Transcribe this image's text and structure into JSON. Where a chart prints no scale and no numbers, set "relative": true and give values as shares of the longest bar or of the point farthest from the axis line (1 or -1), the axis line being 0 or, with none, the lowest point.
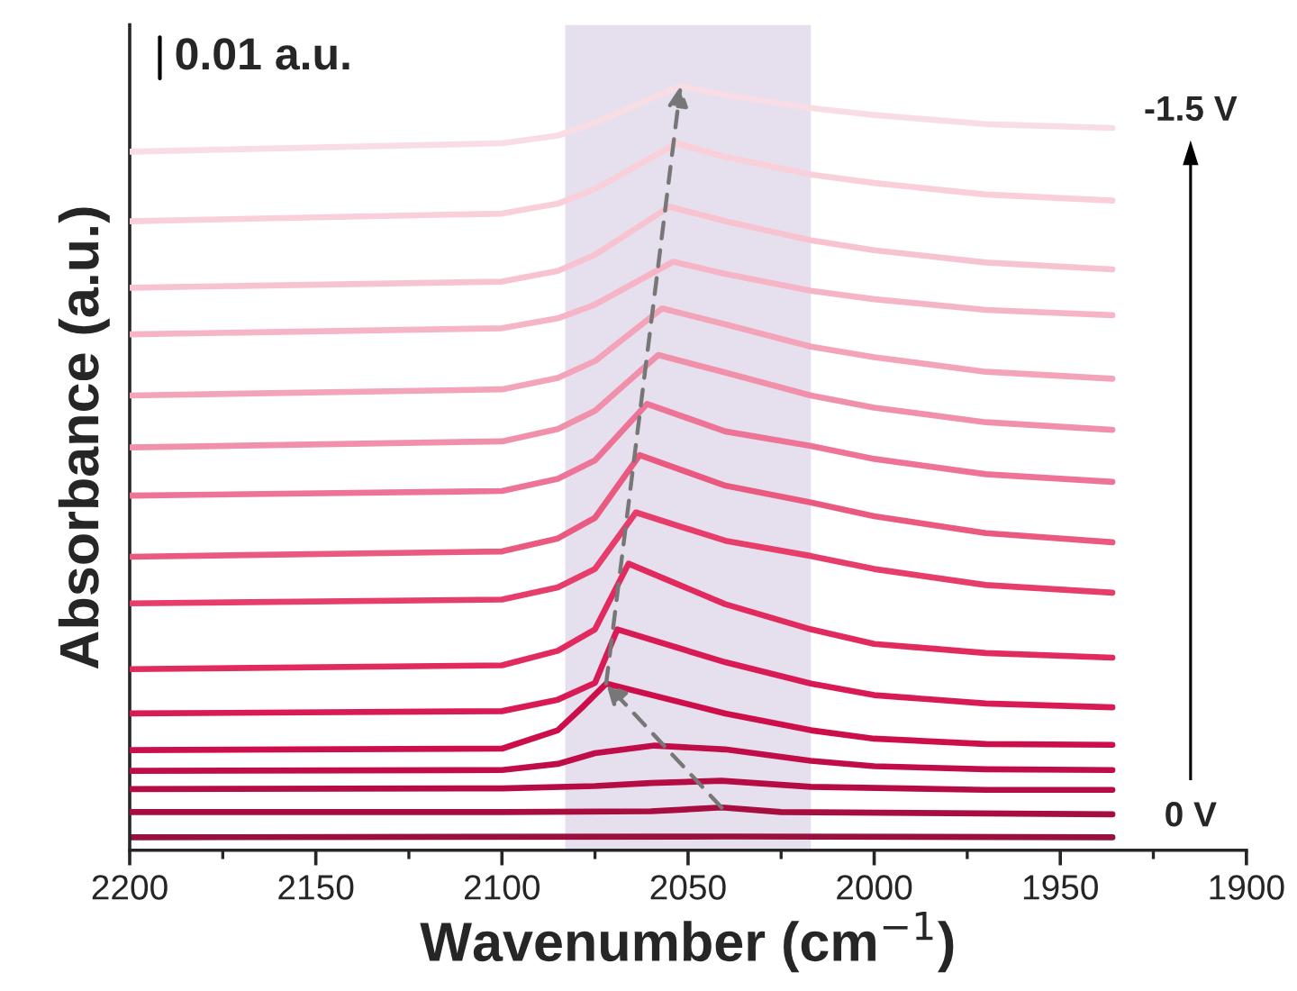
{
  "chart_data": {
    "type": "line",
    "relative": true,
    "xlabel": "Wavenumber (cm$^{−1}$)",
    "ylabel": "Absorbance (a.u.)",
    "xlim": [
      2200,
      1900
    ],
    "xticks": [
      2200,
      2150,
      2100,
      2050,
      2000,
      1950,
      1900
    ],
    "tick_labels": "x",
    "bands": [
      {
        "axis": "x",
        "from": 2083,
        "to": 2017,
        "color": "#e6e0ee"
      }
    ],
    "annotations": [
      "0.01 a.u.",
      "-1.5 V",
      "0 V"
    ],
    "series": [
      {
        "color": "#990f3d",
        "x": [
          2200,
          2040,
          1936
        ],
        "values": [
          0.017,
          0.018,
          0.017
        ]
      },
      {
        "color": "#a80d40",
        "x": [
          2200,
          2100,
          2060,
          2041,
          2025,
          1936
        ],
        "values": [
          0.05,
          0.05,
          0.051,
          0.056,
          0.05,
          0.047
        ]
      },
      {
        "color": "#b50c44",
        "x": [
          2200,
          2100,
          2075,
          2060,
          2041,
          2017,
          1970,
          1936
        ],
        "values": [
          0.08,
          0.081,
          0.084,
          0.088,
          0.091,
          0.083,
          0.079,
          0.079
        ]
      },
      {
        "color": "#c00d47",
        "x": [
          2200,
          2100,
          2085,
          2075,
          2059,
          2040,
          2017,
          2000,
          1970,
          1936
        ],
        "values": [
          0.104,
          0.105,
          0.113,
          0.127,
          0.137,
          0.132,
          0.117,
          0.11,
          0.106,
          0.105
        ]
      },
      {
        "color": "#cc0f4b",
        "x": [
          2200,
          2100,
          2085,
          2078,
          2072,
          2040,
          2017,
          2000,
          1970,
          1936
        ],
        "values": [
          0.131,
          0.133,
          0.157,
          0.189,
          0.218,
          0.179,
          0.157,
          0.146,
          0.139,
          0.138
        ]
      },
      {
        "color": "#d81a55",
        "x": [
          2200,
          2100,
          2085,
          2075,
          2069,
          2040,
          2017,
          2000,
          1970,
          1936
        ],
        "values": [
          0.179,
          0.182,
          0.197,
          0.219,
          0.289,
          0.246,
          0.218,
          0.203,
          0.192,
          0.187
        ]
      },
      {
        "color": "#e12a5e",
        "x": [
          2200,
          2100,
          2085,
          2075,
          2066,
          2040,
          2017,
          2000,
          1970,
          1936
        ],
        "values": [
          0.237,
          0.242,
          0.261,
          0.289,
          0.375,
          0.322,
          0.289,
          0.27,
          0.258,
          0.252
        ]
      },
      {
        "color": "#e63d6b",
        "x": [
          2200,
          2100,
          2085,
          2075,
          2064,
          2040,
          2017,
          2000,
          1970,
          1936
        ],
        "values": [
          0.323,
          0.328,
          0.344,
          0.368,
          0.442,
          0.405,
          0.385,
          0.368,
          0.347,
          0.337
        ]
      },
      {
        "color": "#ea5a80",
        "x": [
          2200,
          2100,
          2085,
          2075,
          2063,
          2040,
          2017,
          2000,
          1970,
          1936
        ],
        "values": [
          0.384,
          0.391,
          0.408,
          0.435,
          0.517,
          0.477,
          0.455,
          0.437,
          0.415,
          0.403
        ]
      },
      {
        "color": "#ee7497",
        "x": [
          2200,
          2100,
          2085,
          2075,
          2061,
          2040,
          2017,
          2000,
          1970,
          1936
        ],
        "values": [
          0.464,
          0.47,
          0.486,
          0.51,
          0.584,
          0.548,
          0.529,
          0.512,
          0.492,
          0.482
        ]
      },
      {
        "color": "#f190aa",
        "x": [
          2200,
          2100,
          2085,
          2075,
          2058,
          2040,
          2017,
          2000,
          1970,
          1936
        ],
        "values": [
          0.527,
          0.535,
          0.551,
          0.575,
          0.648,
          0.625,
          0.595,
          0.579,
          0.56,
          0.55
        ]
      },
      {
        "color": "#f4a4b9",
        "x": [
          2200,
          2100,
          2085,
          2075,
          2057,
          2040,
          2017,
          2000,
          1970,
          1936
        ],
        "values": [
          0.595,
          0.603,
          0.618,
          0.64,
          0.709,
          0.688,
          0.659,
          0.645,
          0.626,
          0.617
        ]
      },
      {
        "color": "#f6b5c6",
        "x": [
          2200,
          2100,
          2085,
          2075,
          2054,
          2040,
          2017,
          2000,
          1970,
          1936
        ],
        "values": [
          0.675,
          0.683,
          0.696,
          0.714,
          0.77,
          0.754,
          0.732,
          0.721,
          0.707,
          0.7
        ]
      },
      {
        "color": "#f8c3d1",
        "x": [
          2200,
          2100,
          2085,
          2075,
          2055,
          2040,
          2017,
          2000,
          1970,
          1936
        ],
        "values": [
          0.736,
          0.744,
          0.758,
          0.779,
          0.842,
          0.823,
          0.798,
          0.785,
          0.769,
          0.76
        ]
      },
      {
        "color": "#f9cfda",
        "x": [
          2200,
          2100,
          2085,
          2075,
          2053,
          2040,
          2017,
          2000,
          1970,
          1936
        ],
        "values": [
          0.823,
          0.833,
          0.846,
          0.865,
          0.925,
          0.907,
          0.884,
          0.873,
          0.858,
          0.85
        ]
      },
      {
        "color": "#f8dde4",
        "x": [
          2200,
          2100,
          2085,
          2075,
          2052,
          2040,
          2017,
          2000,
          1970,
          1936
        ],
        "values": [
          0.914,
          0.925,
          0.935,
          0.952,
          1.0,
          0.988,
          0.971,
          0.962,
          0.95,
          0.945
        ]
      }
    ]
  }
}
